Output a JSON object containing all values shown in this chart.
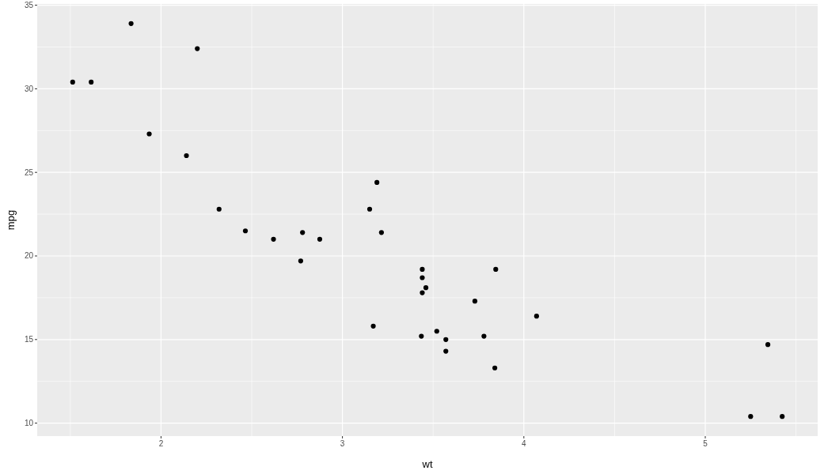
{
  "chart_data": {
    "type": "scatter",
    "xlabel": "wt",
    "ylabel": "mpg",
    "x": [
      2.62,
      2.875,
      2.32,
      3.215,
      3.44,
      3.46,
      3.57,
      3.19,
      3.15,
      3.44,
      3.44,
      4.07,
      3.73,
      3.78,
      5.25,
      5.424,
      5.345,
      2.2,
      1.615,
      1.835,
      2.465,
      3.52,
      3.435,
      3.84,
      3.845,
      1.935,
      2.14,
      1.513,
      3.17,
      2.77,
      3.57,
      2.78
    ],
    "series": [
      {
        "color": "#000000",
        "values": [
          21.0,
          21.0,
          22.8,
          21.4,
          18.7,
          18.1,
          14.3,
          24.4,
          22.8,
          19.2,
          17.8,
          16.4,
          17.3,
          15.2,
          10.4,
          10.4,
          14.7,
          32.4,
          30.4,
          33.9,
          21.5,
          15.5,
          15.2,
          13.3,
          19.2,
          27.3,
          26.0,
          30.4,
          15.8,
          19.7,
          15.0,
          21.4
        ]
      }
    ],
    "xlim": [
      1.3175,
      5.6195
    ],
    "ylim": [
      9.225,
      35.075
    ],
    "xticks": [
      2,
      3,
      4,
      5
    ],
    "yticks": [
      10,
      15,
      20,
      25,
      30,
      35
    ],
    "grid": true,
    "marker": "circle"
  }
}
